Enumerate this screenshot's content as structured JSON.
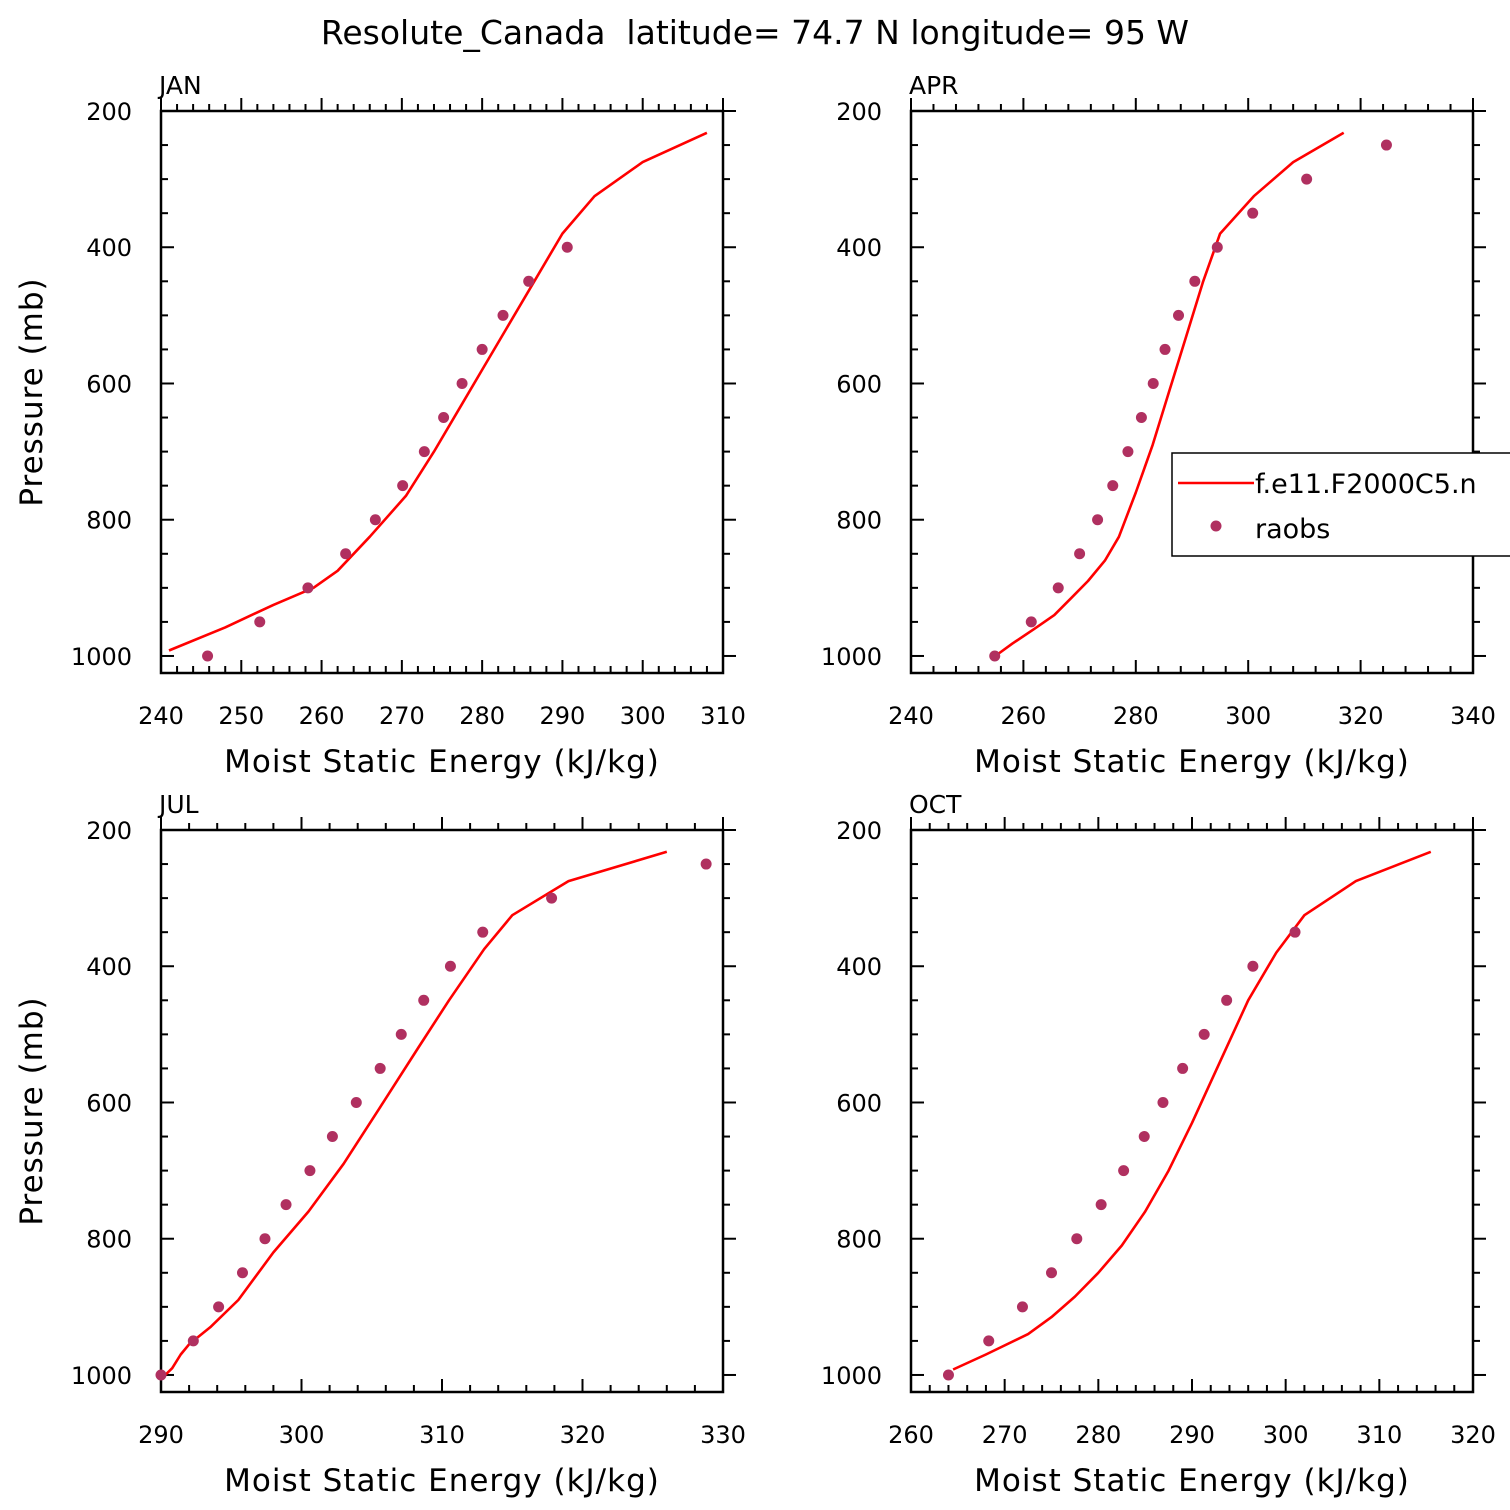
{
  "figure": {
    "title": "Resolute_Canada  latitude= 74.7 N longitude= 95 W"
  },
  "legend": {
    "panel": 1,
    "placement": "right-middle",
    "entries": [
      {
        "label": "f.e11.F2000C5.n",
        "style": "line",
        "color": "#ff0000"
      },
      {
        "label": "raobs",
        "style": "marker",
        "color": "#b03060"
      }
    ]
  },
  "colors": {
    "model": "#ff0000",
    "obs": "#b03060",
    "axes": "#000000"
  },
  "chart_data": [
    {
      "type": "line",
      "label": "JAN",
      "xlabel": "Moist Static Energy (kJ/kg)",
      "ylabel": "Pressure (mb)",
      "xlim": [
        240,
        310
      ],
      "ylim": [
        1025,
        200
      ],
      "y_reversed": true,
      "xticks": [
        240,
        250,
        260,
        270,
        280,
        290,
        300,
        310
      ],
      "yticks": [
        200,
        400,
        600,
        800,
        1000
      ],
      "series": [
        {
          "name": "f.e11.F2000C5.n",
          "kind": "line",
          "x": [
            241.0,
            248.0,
            254.0,
            259.0,
            262.0,
            266.0,
            270.5,
            274.0,
            277.0,
            280.0,
            283.0,
            286.5,
            290.0,
            294.0,
            300.0,
            308.0
          ],
          "y": [
            992,
            958,
            925,
            900,
            875,
            825,
            765,
            700,
            640,
            580,
            520,
            450,
            380,
            325,
            275,
            232
          ]
        },
        {
          "name": "raobs",
          "kind": "scatter",
          "x": [
            245.8,
            252.3,
            258.3,
            263.0,
            266.7,
            270.1,
            272.8,
            275.2,
            277.5,
            280.0,
            282.6,
            285.8,
            290.6
          ],
          "y": [
            1000,
            950,
            900,
            850,
            800,
            750,
            700,
            650,
            600,
            550,
            500,
            450,
            400
          ]
        }
      ]
    },
    {
      "type": "line",
      "label": "APR",
      "xlabel": "Moist Static Energy (kJ/kg)",
      "ylabel": "",
      "xlim": [
        240,
        340
      ],
      "ylim": [
        1025,
        200
      ],
      "y_reversed": true,
      "xticks": [
        240,
        260,
        280,
        300,
        320,
        340
      ],
      "yticks": [
        200,
        400,
        600,
        800,
        1000
      ],
      "series": [
        {
          "name": "f.e11.F2000C5.n",
          "kind": "line",
          "x": [
            255.0,
            258.0,
            262.0,
            265.5,
            268.5,
            271.5,
            274.5,
            277.0,
            280.0,
            283.0,
            286.0,
            289.0,
            292.0,
            295.0,
            301.0,
            308.0,
            317.0
          ],
          "y": [
            1000,
            982,
            960,
            940,
            915,
            890,
            860,
            825,
            760,
            690,
            610,
            530,
            450,
            380,
            325,
            275,
            232
          ]
        },
        {
          "name": "raobs",
          "kind": "scatter",
          "x": [
            254.9,
            261.4,
            266.2,
            270.0,
            273.2,
            275.9,
            278.6,
            281.0,
            283.1,
            285.2,
            287.6,
            290.5,
            294.5,
            300.8,
            310.4,
            324.6
          ],
          "y": [
            1000,
            950,
            900,
            850,
            800,
            750,
            700,
            650,
            600,
            550,
            500,
            450,
            400,
            350,
            300,
            250
          ]
        }
      ]
    },
    {
      "type": "line",
      "label": "JUL",
      "xlabel": "Moist Static Energy (kJ/kg)",
      "ylabel": "Pressure (mb)",
      "xlim": [
        290,
        330
      ],
      "ylim": [
        1025,
        200
      ],
      "y_reversed": true,
      "xticks": [
        290,
        300,
        310,
        320,
        330
      ],
      "yticks": [
        200,
        400,
        600,
        800,
        1000
      ],
      "series": [
        {
          "name": "f.e11.F2000C5.n",
          "kind": "line",
          "x": [
            290.3,
            290.8,
            291.4,
            292.0,
            293.5,
            295.5,
            298.0,
            300.5,
            303.0,
            305.5,
            308.3,
            310.5,
            313.0,
            315.0,
            319.0,
            326.0
          ],
          "y": [
            1000,
            990,
            970,
            955,
            930,
            890,
            820,
            760,
            690,
            610,
            520,
            450,
            375,
            325,
            275,
            232
          ]
        },
        {
          "name": "raobs",
          "kind": "scatter",
          "x": [
            290.0,
            292.3,
            294.1,
            295.8,
            297.4,
            298.9,
            300.6,
            302.2,
            303.9,
            305.6,
            307.1,
            308.7,
            310.6,
            312.9,
            317.8,
            328.8
          ],
          "y": [
            1000,
            950,
            900,
            850,
            800,
            750,
            700,
            650,
            600,
            550,
            500,
            450,
            400,
            350,
            300,
            250
          ]
        }
      ]
    },
    {
      "type": "line",
      "label": "OCT",
      "xlabel": "Moist Static Energy (kJ/kg)",
      "ylabel": "",
      "xlim": [
        260,
        320
      ],
      "ylim": [
        1025,
        200
      ],
      "y_reversed": true,
      "xticks": [
        260,
        270,
        280,
        290,
        300,
        310,
        320
      ],
      "yticks": [
        200,
        400,
        600,
        800,
        1000
      ],
      "series": [
        {
          "name": "f.e11.F2000C5.n",
          "kind": "line",
          "x": [
            264.5,
            268.0,
            272.5,
            275.0,
            277.5,
            280.0,
            282.5,
            285.0,
            287.5,
            290.0,
            293.0,
            296.0,
            299.0,
            302.0,
            307.5,
            315.5
          ],
          "y": [
            992,
            970,
            940,
            915,
            885,
            850,
            810,
            760,
            700,
            630,
            540,
            450,
            380,
            325,
            275,
            232
          ]
        },
        {
          "name": "raobs",
          "kind": "scatter",
          "x": [
            264.0,
            268.3,
            271.9,
            275.0,
            277.7,
            280.3,
            282.7,
            284.9,
            286.9,
            289.0,
            291.3,
            293.7,
            296.5,
            301.0
          ],
          "y": [
            1000,
            950,
            900,
            850,
            800,
            750,
            700,
            650,
            600,
            550,
            500,
            450,
            400,
            350
          ]
        }
      ]
    }
  ]
}
